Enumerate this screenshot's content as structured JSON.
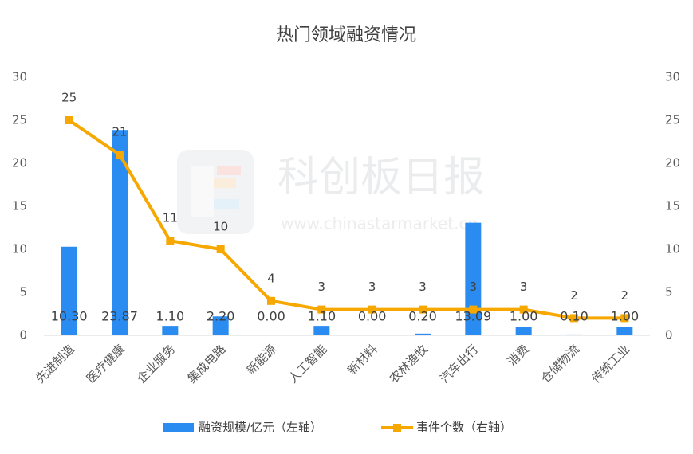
{
  "chart_data": {
    "type": "bar_line",
    "title": "热门领域融资情况",
    "watermark": "科创板日报",
    "watermark_url": "www.chinastarmarket.cn",
    "categories": [
      "先进制造",
      "医疗健康",
      "企业服务",
      "集成电路",
      "新能源",
      "人工智能",
      "新材料",
      "农林渔牧",
      "汽车出行",
      "消费",
      "仓储物流",
      "传统工业"
    ],
    "series": [
      {
        "name": "融资规模/亿元（左轴）",
        "type": "bar",
        "color": "#2a8cf0",
        "values": [
          10.3,
          23.87,
          1.1,
          2.2,
          0,
          1.1,
          0,
          0.2,
          13.09,
          1,
          0.1,
          1
        ],
        "value_labels": [
          "10.30",
          "23.87",
          "1.10",
          "2.20",
          "0.00",
          "1.10",
          "0.00",
          "0.20",
          "13.09",
          "1.00",
          "0.10",
          "1.00"
        ]
      },
      {
        "name": "事件个数（右轴）",
        "type": "line",
        "axis": "y2",
        "color": "#f7a800",
        "values": [
          25,
          21,
          11,
          10,
          4,
          3,
          3,
          3,
          3,
          3,
          2,
          2
        ]
      }
    ],
    "ylim": [
      0,
      30
    ],
    "yticks": [
      0,
      5,
      10,
      15,
      20,
      25,
      30
    ],
    "y2lim": [
      0,
      30
    ],
    "y2ticks": [
      0,
      5,
      10,
      15,
      20,
      25,
      30
    ],
    "legend": "bottom"
  }
}
